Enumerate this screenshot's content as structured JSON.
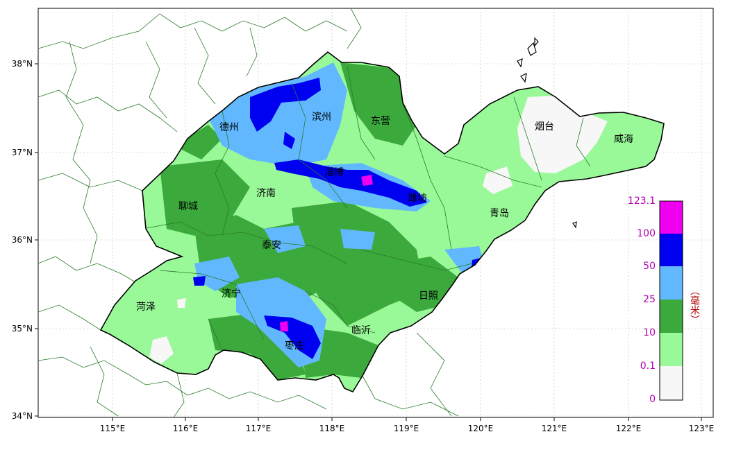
{
  "colors": {
    "none": "#f7f7f7",
    "light": "#99f999",
    "moderate": "#3ca93c",
    "heavy": "#61b8ff",
    "storm": "#0000f0",
    "extreme": "#f000f0",
    "border": "#000000",
    "province_lines": "#2a7a2a",
    "grid": "#bbbbbb"
  },
  "lon_ticks": [
    "115°E",
    "116°E",
    "117°E",
    "118°E",
    "119°E",
    "120°E",
    "121°E",
    "122°E",
    "123°E"
  ],
  "lat_ticks": [
    "38°N",
    "37°N",
    "36°N",
    "35°N",
    "34°N"
  ],
  "cities": [
    {
      "id": "dezhou",
      "name": "德州"
    },
    {
      "id": "binzhou",
      "name": "滨州"
    },
    {
      "id": "dongying",
      "name": "东营"
    },
    {
      "id": "yantai",
      "name": "烟台"
    },
    {
      "id": "weihai",
      "name": "威海"
    },
    {
      "id": "zibo",
      "name": "淄博"
    },
    {
      "id": "jinan",
      "name": "济南"
    },
    {
      "id": "liaocheng",
      "name": "聊城"
    },
    {
      "id": "weifang",
      "name": "潍坊"
    },
    {
      "id": "qingdao",
      "name": "青岛"
    },
    {
      "id": "taian",
      "name": "泰安"
    },
    {
      "id": "jining",
      "name": "济宁"
    },
    {
      "id": "heze",
      "name": "菏泽"
    },
    {
      "id": "rizhao",
      "name": "日照"
    },
    {
      "id": "linyi",
      "name": "临沂"
    },
    {
      "id": "zaozhuang",
      "name": "枣庄"
    }
  ],
  "legend": {
    "levels": [
      "123.1",
      "100",
      "50",
      "25",
      "10",
      "0.1",
      "0"
    ],
    "unit": "（毫米）"
  }
}
